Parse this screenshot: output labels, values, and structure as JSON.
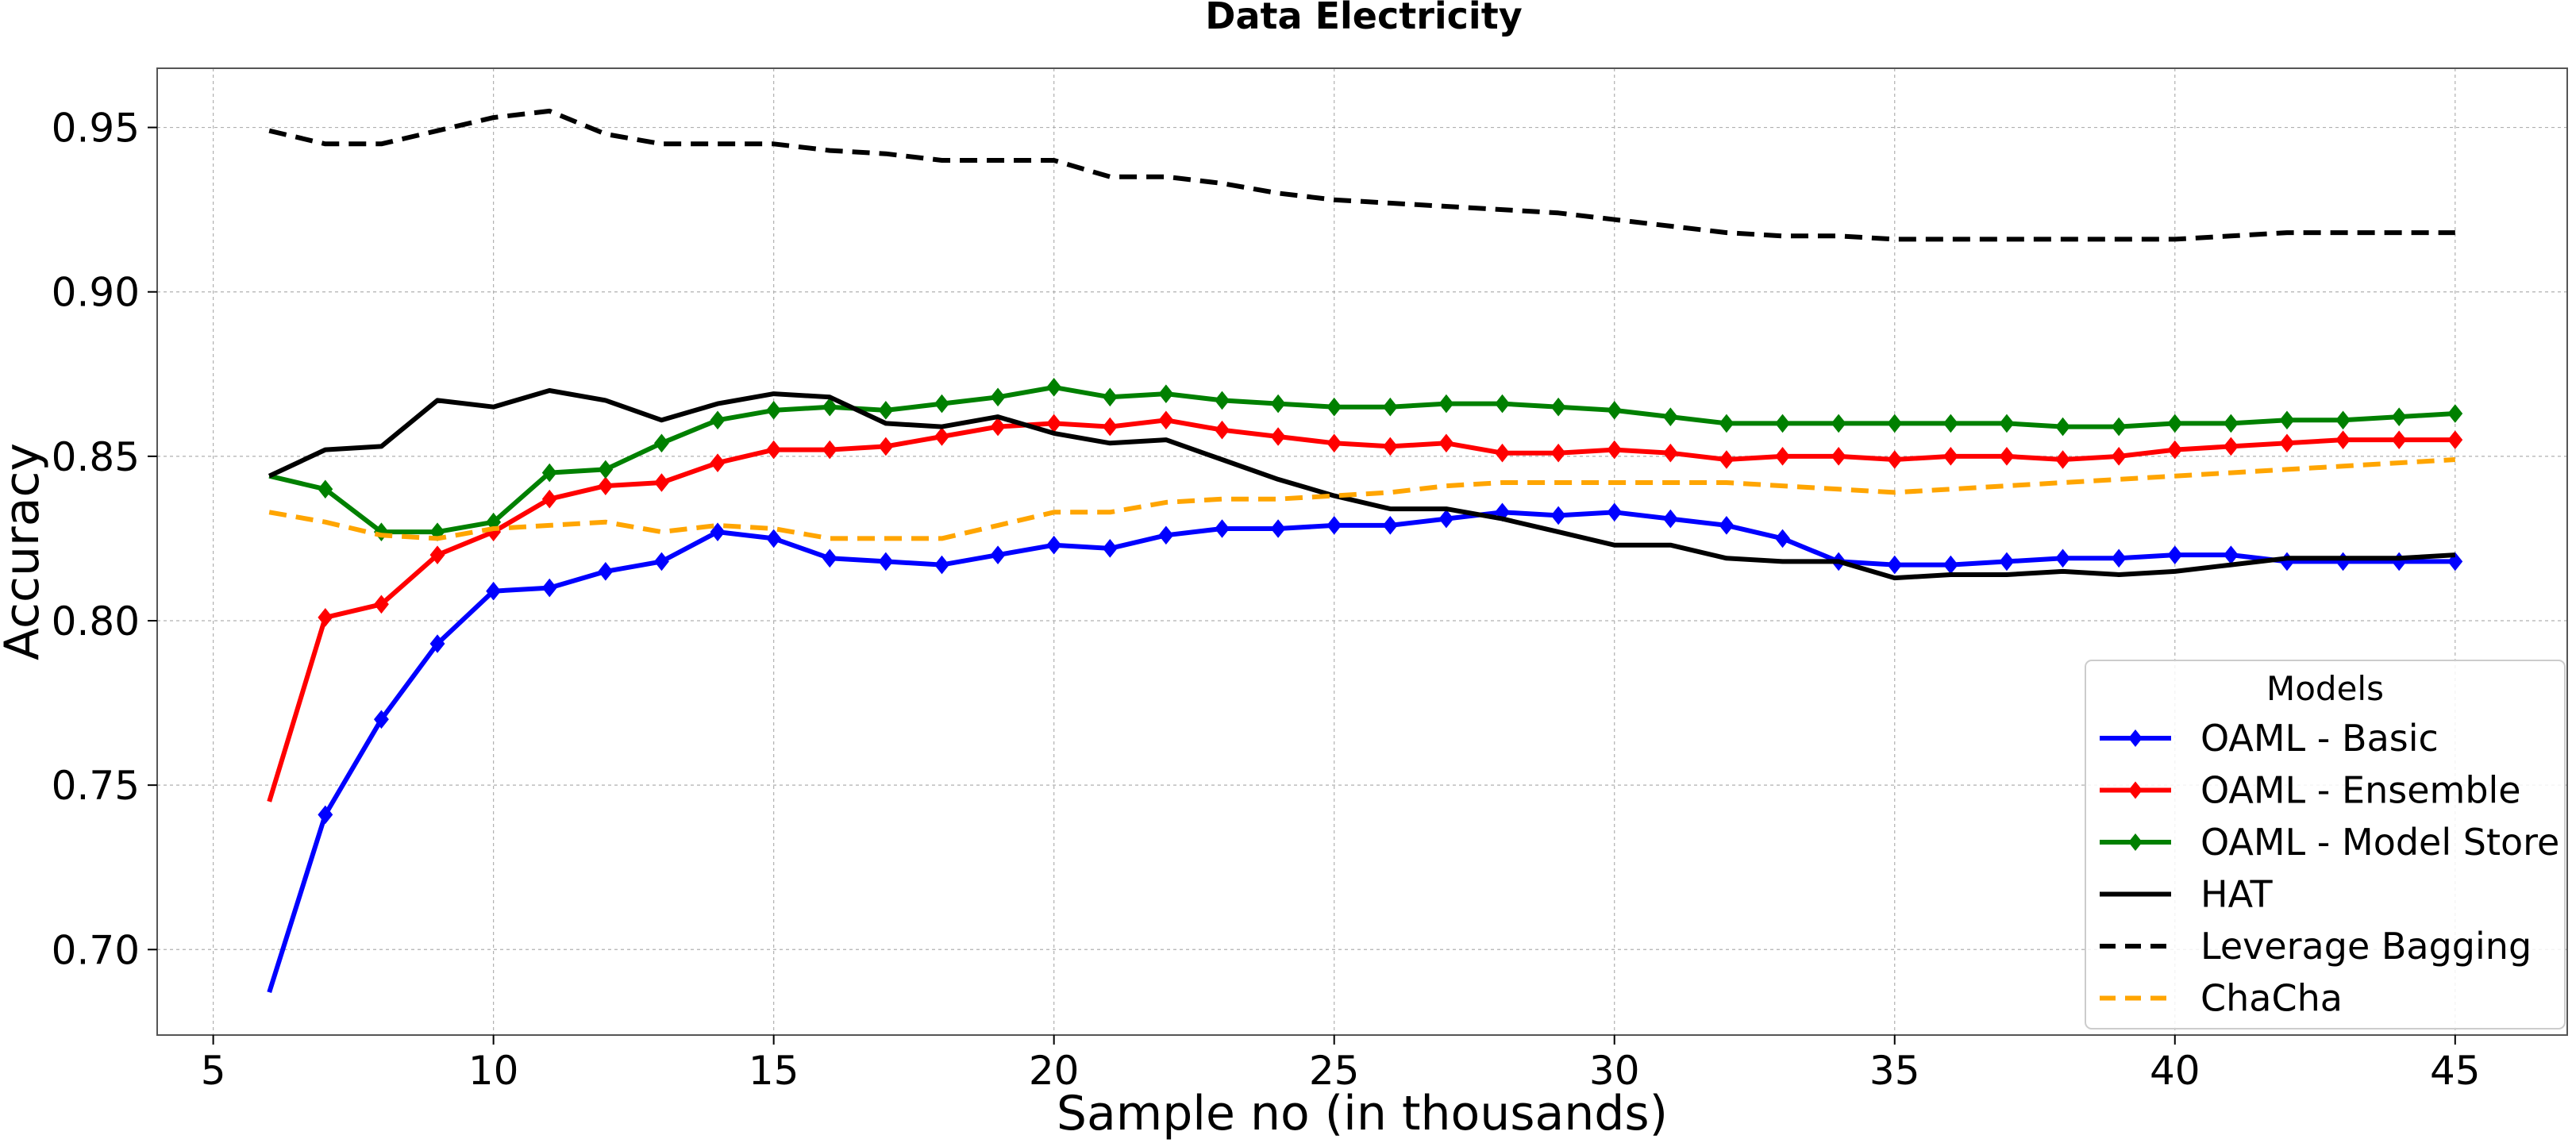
{
  "chart_data": {
    "type": "line",
    "title": "Data Electricity",
    "xlabel": "Sample no (in thousands)",
    "ylabel": "Accuracy",
    "xlim": [
      4,
      47
    ],
    "ylim": [
      0.674,
      0.968
    ],
    "xticks": [
      5,
      10,
      15,
      20,
      25,
      30,
      35,
      40,
      45
    ],
    "yticks": [
      0.7,
      0.75,
      0.8,
      0.85,
      0.9,
      0.95
    ],
    "xtick_labels": [
      "5",
      "10",
      "15",
      "20",
      "25",
      "30",
      "35",
      "40",
      "45"
    ],
    "ytick_labels": [
      "0.70",
      "0.75",
      "0.80",
      "0.85",
      "0.90",
      "0.95"
    ],
    "grid": true,
    "legend": {
      "title": "Models",
      "position": "lower-right"
    },
    "series": [
      {
        "name": "OAML - Basic",
        "color": "#0000ff",
        "style": "solid",
        "marker": "diamond",
        "x": [
          6,
          7,
          8,
          9,
          10,
          11,
          12,
          13,
          14,
          15,
          16,
          17,
          18,
          19,
          20,
          21,
          22,
          23,
          24,
          25,
          26,
          27,
          28,
          29,
          30,
          31,
          32,
          33,
          34,
          35,
          36,
          37,
          38,
          39,
          40,
          41,
          42,
          43,
          44,
          45
        ],
        "y": [
          0.687,
          0.741,
          0.77,
          0.793,
          0.809,
          0.81,
          0.815,
          0.818,
          0.827,
          0.825,
          0.819,
          0.818,
          0.817,
          0.82,
          0.823,
          0.822,
          0.826,
          0.828,
          0.828,
          0.829,
          0.829,
          0.831,
          0.833,
          0.832,
          0.833,
          0.831,
          0.829,
          0.825,
          0.818,
          0.817,
          0.817,
          0.818,
          0.819,
          0.819,
          0.82,
          0.82,
          0.818,
          0.818,
          0.818,
          0.818
        ]
      },
      {
        "name": "OAML - Ensemble",
        "color": "#ff0000",
        "style": "solid",
        "marker": "diamond",
        "x": [
          6,
          7,
          8,
          9,
          10,
          11,
          12,
          13,
          14,
          15,
          16,
          17,
          18,
          19,
          20,
          21,
          22,
          23,
          24,
          25,
          26,
          27,
          28,
          29,
          30,
          31,
          32,
          33,
          34,
          35,
          36,
          37,
          38,
          39,
          40,
          41,
          42,
          43,
          44,
          45
        ],
        "y": [
          0.745,
          0.801,
          0.805,
          0.82,
          0.827,
          0.837,
          0.841,
          0.842,
          0.848,
          0.852,
          0.852,
          0.853,
          0.856,
          0.859,
          0.86,
          0.859,
          0.861,
          0.858,
          0.856,
          0.854,
          0.853,
          0.854,
          0.851,
          0.851,
          0.852,
          0.851,
          0.849,
          0.85,
          0.85,
          0.849,
          0.85,
          0.85,
          0.849,
          0.85,
          0.852,
          0.853,
          0.854,
          0.855,
          0.855,
          0.855
        ]
      },
      {
        "name": "OAML - Model Store",
        "color": "#008000",
        "style": "solid",
        "marker": "diamond",
        "x": [
          6,
          7,
          8,
          9,
          10,
          11,
          12,
          13,
          14,
          15,
          16,
          17,
          18,
          19,
          20,
          21,
          22,
          23,
          24,
          25,
          26,
          27,
          28,
          29,
          30,
          31,
          32,
          33,
          34,
          35,
          36,
          37,
          38,
          39,
          40,
          41,
          42,
          43,
          44,
          45
        ],
        "y": [
          0.844,
          0.84,
          0.827,
          0.827,
          0.83,
          0.845,
          0.846,
          0.854,
          0.861,
          0.864,
          0.865,
          0.864,
          0.866,
          0.868,
          0.871,
          0.868,
          0.869,
          0.867,
          0.866,
          0.865,
          0.865,
          0.866,
          0.866,
          0.865,
          0.864,
          0.862,
          0.86,
          0.86,
          0.86,
          0.86,
          0.86,
          0.86,
          0.859,
          0.859,
          0.86,
          0.86,
          0.861,
          0.861,
          0.862,
          0.863
        ]
      },
      {
        "name": "HAT",
        "color": "#000000",
        "style": "solid",
        "marker": "none",
        "x": [
          6,
          7,
          8,
          9,
          10,
          11,
          12,
          13,
          14,
          15,
          16,
          17,
          18,
          19,
          20,
          21,
          22,
          23,
          24,
          25,
          26,
          27,
          28,
          29,
          30,
          31,
          32,
          33,
          34,
          35,
          36,
          37,
          38,
          39,
          40,
          41,
          42,
          43,
          44,
          45
        ],
        "y": [
          0.844,
          0.852,
          0.853,
          0.867,
          0.865,
          0.87,
          0.867,
          0.861,
          0.866,
          0.869,
          0.868,
          0.86,
          0.859,
          0.862,
          0.857,
          0.854,
          0.855,
          0.849,
          0.843,
          0.838,
          0.834,
          0.834,
          0.831,
          0.827,
          0.823,
          0.823,
          0.819,
          0.818,
          0.818,
          0.813,
          0.814,
          0.814,
          0.815,
          0.814,
          0.815,
          0.817,
          0.819,
          0.819,
          0.819,
          0.82
        ]
      },
      {
        "name": "Leverage Bagging",
        "color": "#000000",
        "style": "dashed",
        "marker": "none",
        "x": [
          6,
          7,
          8,
          9,
          10,
          11,
          12,
          13,
          14,
          15,
          16,
          17,
          18,
          19,
          20,
          21,
          22,
          23,
          24,
          25,
          26,
          27,
          28,
          29,
          30,
          31,
          32,
          33,
          34,
          35,
          36,
          37,
          38,
          39,
          40,
          41,
          42,
          43,
          44,
          45
        ],
        "y": [
          0.949,
          0.945,
          0.945,
          0.949,
          0.953,
          0.955,
          0.948,
          0.945,
          0.945,
          0.945,
          0.943,
          0.942,
          0.94,
          0.94,
          0.94,
          0.935,
          0.935,
          0.933,
          0.93,
          0.928,
          0.927,
          0.926,
          0.925,
          0.924,
          0.922,
          0.92,
          0.918,
          0.917,
          0.917,
          0.916,
          0.916,
          0.916,
          0.916,
          0.916,
          0.916,
          0.917,
          0.918,
          0.918,
          0.918,
          0.918
        ]
      },
      {
        "name": "ChaCha",
        "color": "#ffa500",
        "style": "dashed",
        "marker": "none",
        "x": [
          6,
          7,
          8,
          9,
          10,
          11,
          12,
          13,
          14,
          15,
          16,
          17,
          18,
          19,
          20,
          21,
          22,
          23,
          24,
          25,
          26,
          27,
          28,
          29,
          30,
          31,
          32,
          33,
          34,
          35,
          36,
          37,
          38,
          39,
          40,
          41,
          42,
          43,
          44,
          45
        ],
        "y": [
          0.833,
          0.83,
          0.826,
          0.825,
          0.828,
          0.829,
          0.83,
          0.827,
          0.829,
          0.828,
          0.825,
          0.825,
          0.825,
          0.829,
          0.833,
          0.833,
          0.836,
          0.837,
          0.837,
          0.838,
          0.839,
          0.841,
          0.842,
          0.842,
          0.842,
          0.842,
          0.842,
          0.841,
          0.84,
          0.839,
          0.84,
          0.841,
          0.842,
          0.843,
          0.844,
          0.845,
          0.846,
          0.847,
          0.848,
          0.849
        ]
      }
    ]
  }
}
